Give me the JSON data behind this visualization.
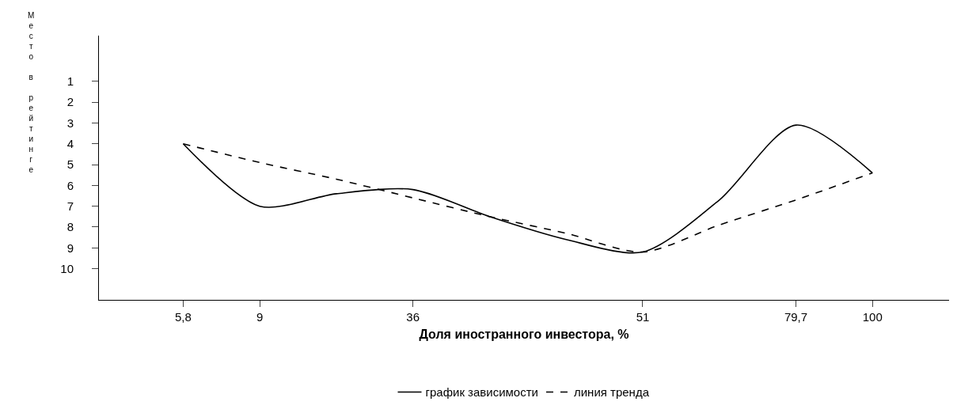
{
  "chart_data": {
    "type": "line",
    "xlabel": "Доля иностранного инвестора, %",
    "ylabel": "Место в рейтинге",
    "categories": [
      "5,8",
      "9",
      null,
      "36",
      null,
      null,
      "51",
      null,
      "79,7",
      "100"
    ],
    "series": [
      {
        "name": "график зависимости",
        "color": "#000000",
        "line_style": "solid",
        "values": [
          4,
          7,
          6.4,
          6.2,
          7.5,
          8.6,
          9.2,
          6.7,
          3.1,
          5.4
        ]
      },
      {
        "name": "линия тренда",
        "color": "#000000",
        "line_style": "dashed",
        "values": [
          4,
          4.9,
          5.7,
          6.6,
          7.5,
          8.3,
          9.2,
          7.9,
          6.7,
          5.4
        ]
      }
    ],
    "ylim": [
      11.5,
      -1.2
    ],
    "yticks": [
      1,
      2,
      3,
      4,
      5,
      6,
      7,
      8,
      9,
      10
    ],
    "legend": "bottom",
    "marker": "none"
  }
}
